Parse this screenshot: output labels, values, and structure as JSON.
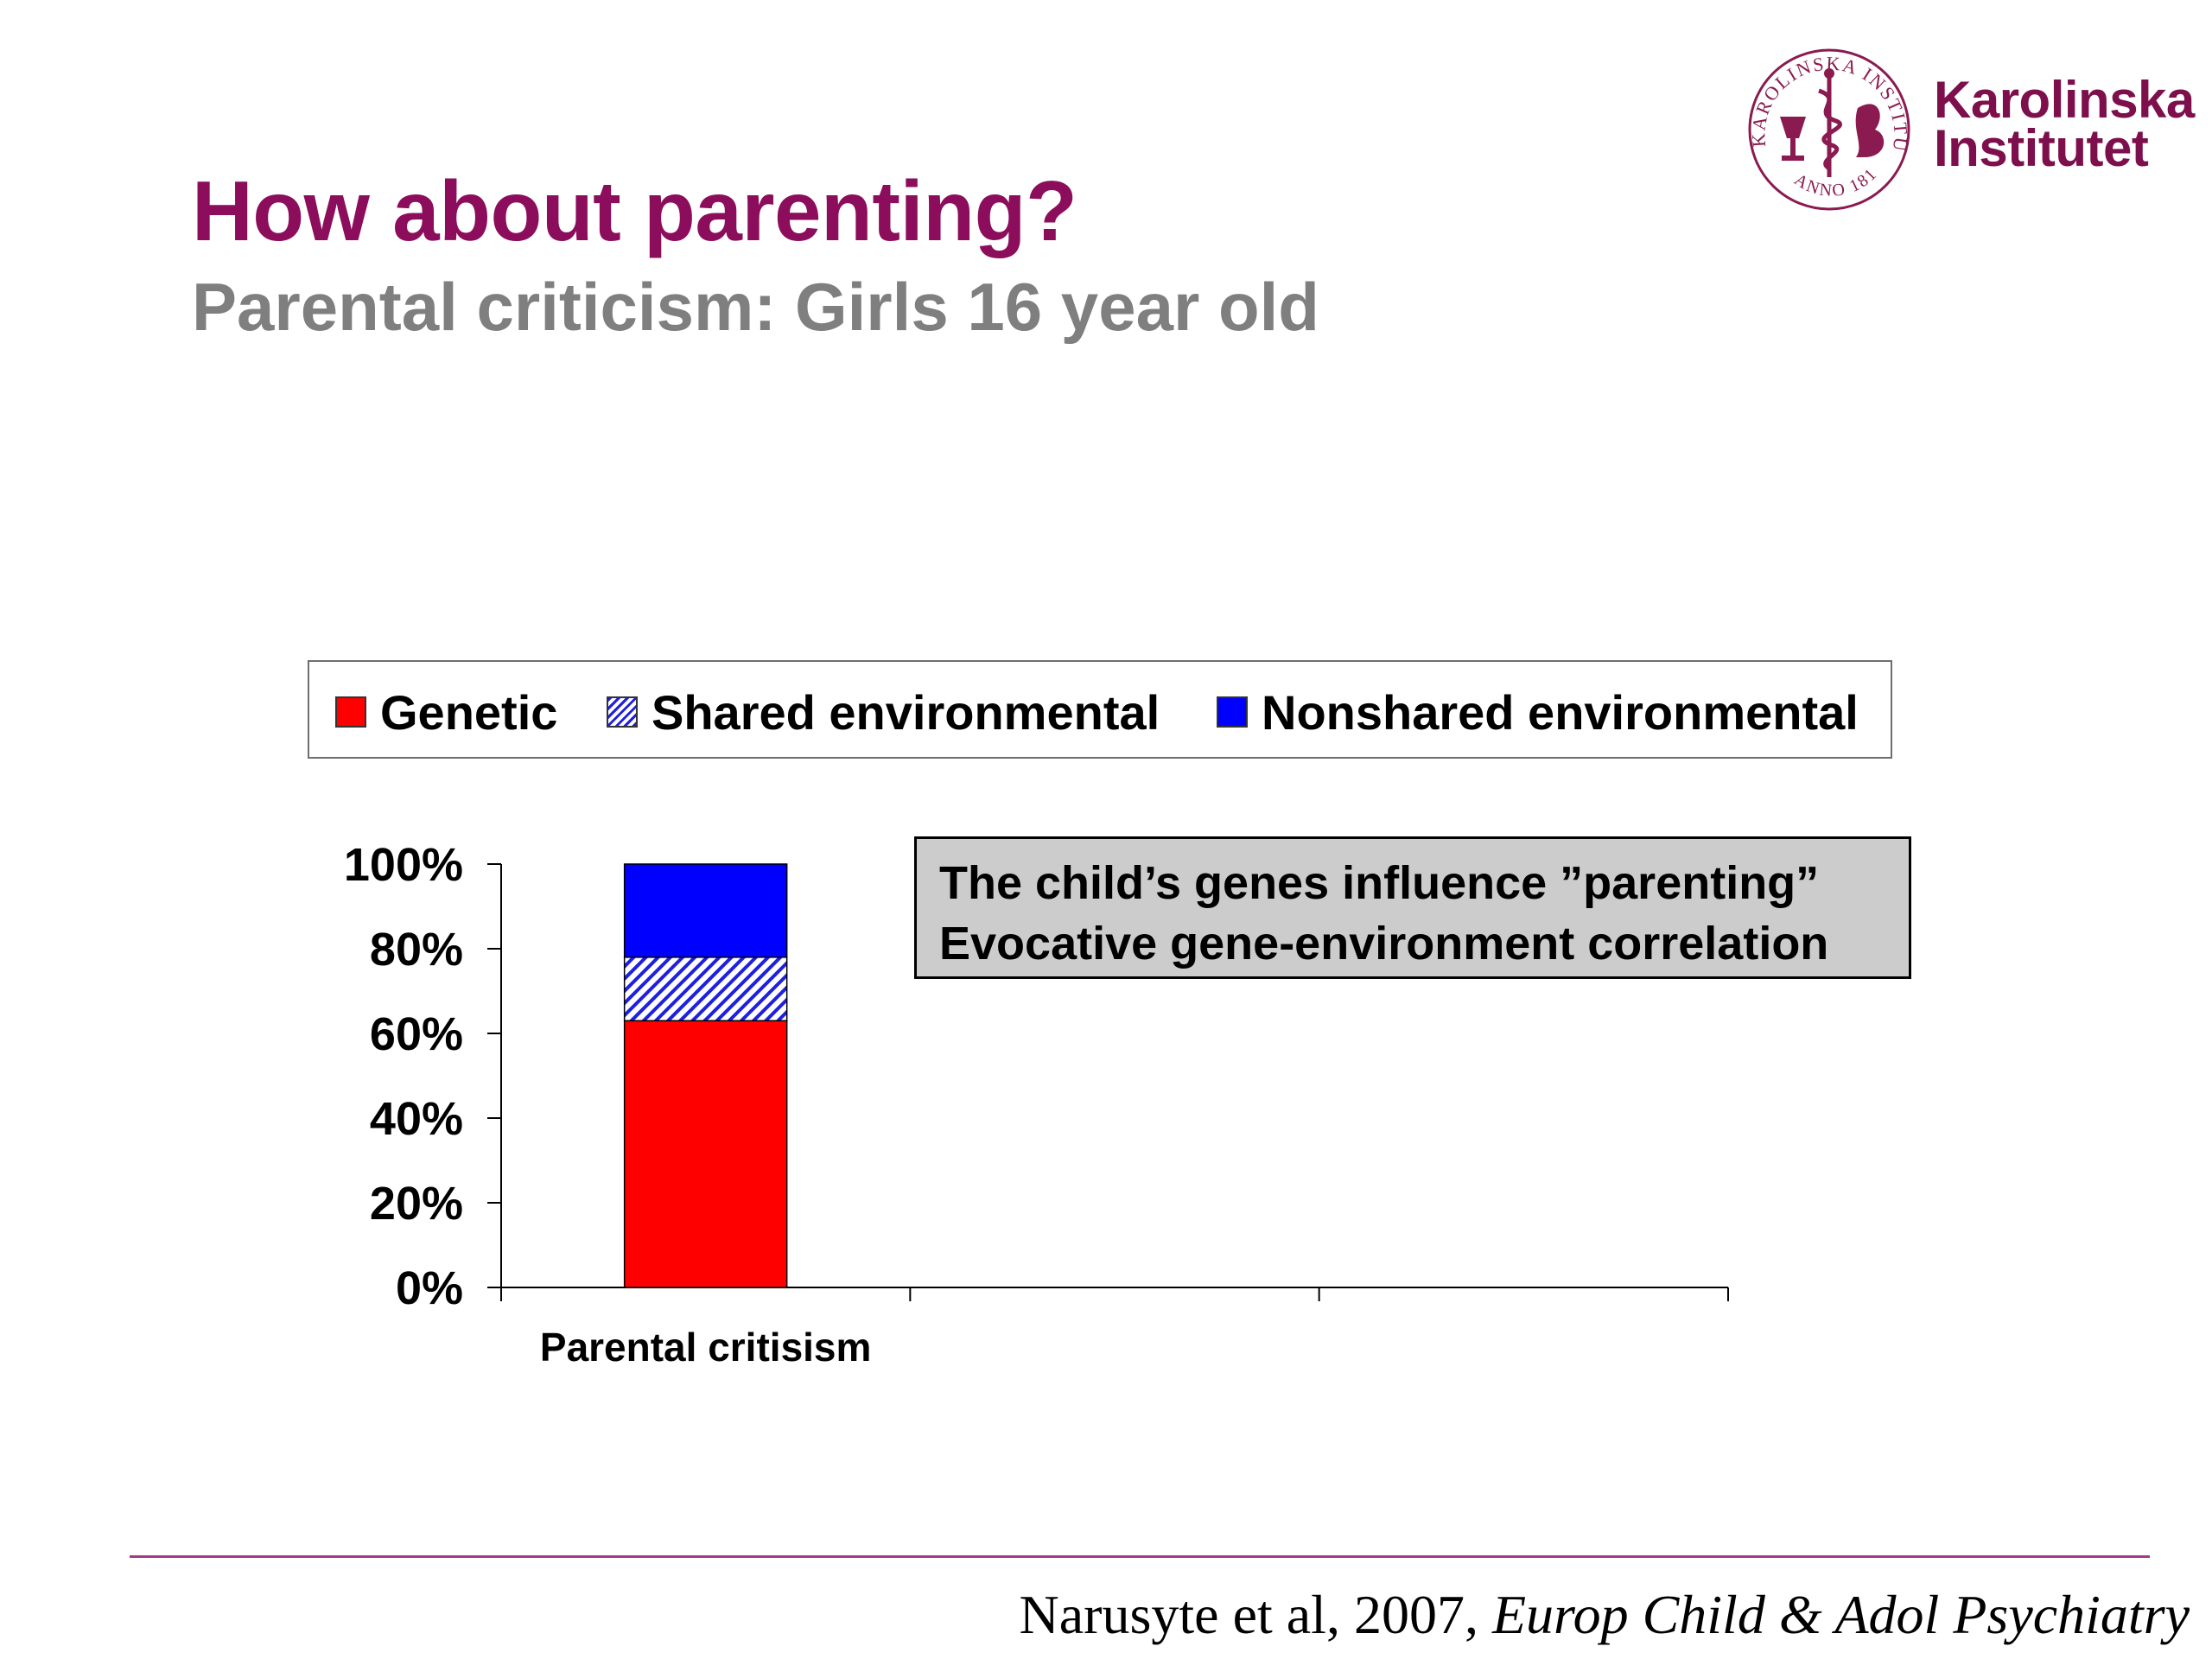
{
  "logo": {
    "seal_text_top": "KAROLINSKA INSTITUTET",
    "seal_text_bottom": "ANNO 1810",
    "line1": "Karolinska",
    "line2": "Institutet"
  },
  "slide": {
    "title": "How about parenting?",
    "subtitle": "Parental criticism: Girls 16 year old"
  },
  "annotation": {
    "line1": "The child’s genes influence ”parenting”",
    "line2": "Evocative gene-environment correlation"
  },
  "footer": {
    "citation_authors": "Narusyte et al, 2007, ",
    "citation_journal": "Europ Child & Adol Psychiatry"
  },
  "colors": {
    "title": "#8b0d5c",
    "genetic": "#ff0000",
    "shared": "#1f1fe0",
    "nonshared": "#0000ff"
  },
  "chart_data": {
    "type": "bar",
    "stacked": true,
    "percent": true,
    "categories": [
      "Parental critisism",
      "",
      ""
    ],
    "series": [
      {
        "name": "Genetic",
        "values": [
          63,
          null,
          null
        ],
        "color": "#ff0000",
        "pattern": "solid"
      },
      {
        "name": "Shared environmental",
        "values": [
          15,
          null,
          null
        ],
        "color": "#1f1fe0",
        "pattern": "hatched"
      },
      {
        "name": "Nonshared environmental",
        "values": [
          22,
          null,
          null
        ],
        "color": "#0000ff",
        "pattern": "solid"
      }
    ],
    "yticks": [
      "0%",
      "20%",
      "40%",
      "60%",
      "80%",
      "100%"
    ],
    "ylim": [
      0,
      100
    ],
    "legend": "top",
    "grid": false
  }
}
